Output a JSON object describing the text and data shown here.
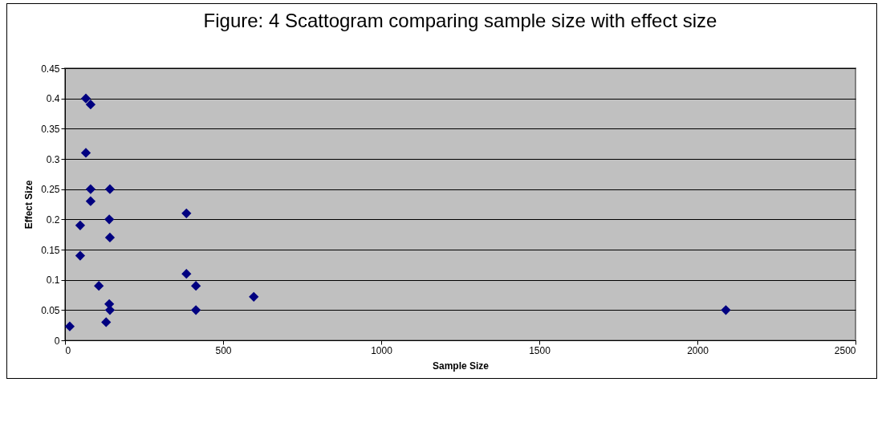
{
  "chart_data": {
    "type": "scatter",
    "title": "Figure: 4 Scattogram comparing sample size with effect size",
    "xlabel": "Sample Size",
    "ylabel": "Effect Size",
    "series": [
      {
        "color": "#000080",
        "x": [
          66,
          81,
          66,
          81,
          142,
          81,
          140,
          142,
          48,
          48,
          107,
          140,
          142,
          130,
          15,
          384,
          384,
          414,
          414,
          597,
          2090
        ],
        "values": [
          0.4,
          0.39,
          0.31,
          0.25,
          0.25,
          0.23,
          0.2,
          0.17,
          0.19,
          0.14,
          0.09,
          0.06,
          0.05,
          0.03,
          0.023,
          0.21,
          0.11,
          0.09,
          0.05,
          0.072,
          0.05
        ]
      }
    ],
    "xlim": [
      0,
      2500
    ],
    "xticks": [
      0,
      500,
      1000,
      1500,
      2000,
      2500
    ],
    "ylim": [
      0,
      0.45
    ],
    "yticks": [
      0,
      0.05,
      0.1,
      0.15,
      0.2,
      0.25,
      0.3,
      0.35,
      0.4,
      0.45
    ],
    "grid": "y",
    "marker": "diamond"
  }
}
